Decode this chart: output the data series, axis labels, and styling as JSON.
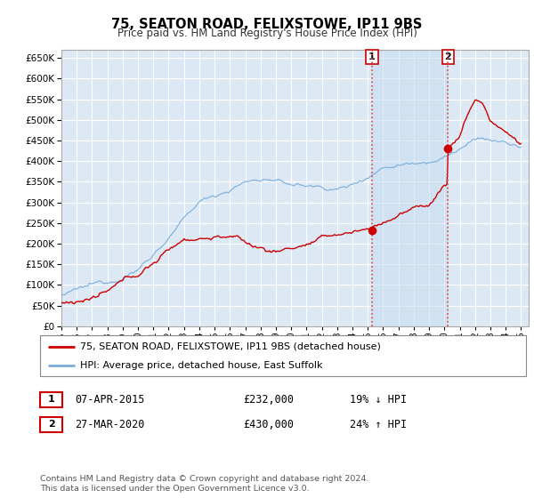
{
  "title": "75, SEATON ROAD, FELIXSTOWE, IP11 9BS",
  "subtitle": "Price paid vs. HM Land Registry's House Price Index (HPI)",
  "legend_line1": "75, SEATON ROAD, FELIXSTOWE, IP11 9BS (detached house)",
  "legend_line2": "HPI: Average price, detached house, East Suffolk",
  "transaction1_date": "07-APR-2015",
  "transaction1_price": "£232,000",
  "transaction1_hpi": "19% ↓ HPI",
  "transaction2_date": "27-MAR-2020",
  "transaction2_price": "£430,000",
  "transaction2_hpi": "24% ↑ HPI",
  "footer": "Contains HM Land Registry data © Crown copyright and database right 2024.\nThis data is licensed under the Open Government Licence v3.0.",
  "price_color": "#cc0000",
  "hpi_color": "#7aaddb",
  "vline_color": "#dd4444",
  "background_color": "#ffffff",
  "plot_bg_color": "#dce9f5",
  "shade_color": "#c5daf0",
  "grid_color": "#ffffff",
  "ylim": [
    0,
    670000
  ],
  "yticks": [
    0,
    50000,
    100000,
    150000,
    200000,
    250000,
    300000,
    350000,
    400000,
    450000,
    500000,
    550000,
    600000,
    650000
  ],
  "year_start": 1995,
  "year_end": 2025,
  "transaction1_year": 2015.27,
  "transaction2_year": 2020.23,
  "transaction1_price_val": 232000,
  "transaction2_price_val": 430000
}
